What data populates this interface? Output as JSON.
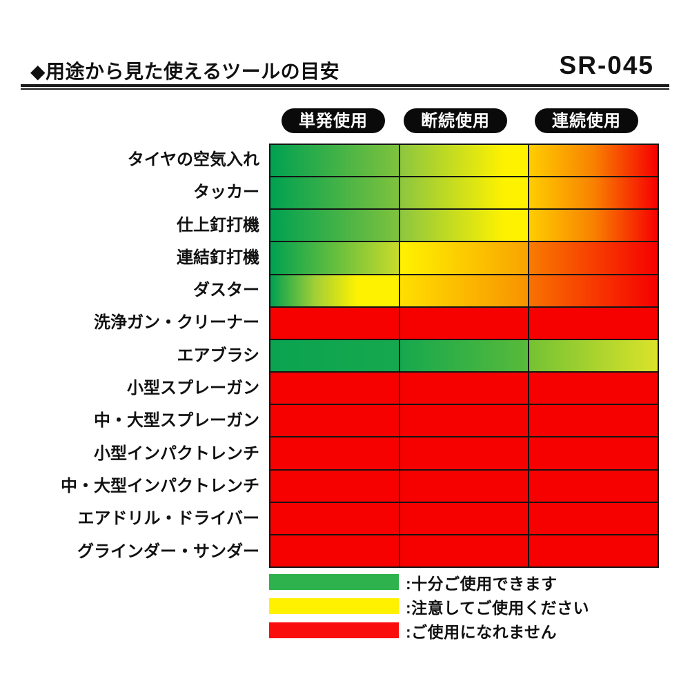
{
  "header": {
    "title": "◆用途から見た使えるツールの目安",
    "code": "SR-045"
  },
  "columns": [
    "単発使用",
    "断続使用",
    "連続使用"
  ],
  "legend": [
    {
      "color": "#2eb24d",
      "label": ":十分ご使用できます"
    },
    {
      "color": "#fff100",
      "label": ":注意してご使用ください"
    },
    {
      "color": "#f90d0d",
      "label": ":ご使用になれません"
    }
  ],
  "palette": {
    "ok_green": "#00a151",
    "caution_yellow": "#fff200",
    "no_red": "#f60000",
    "grid_line": "#141414",
    "pill_black": "#0a0a0a"
  },
  "legend_meaning": {
    "ok": "十分ご使用できます",
    "caution": "注意してご使用ください",
    "no": "ご使用になれません"
  },
  "chart_data": {
    "type": "heatmap",
    "title": "用途から見た使えるツールの目安",
    "columns": [
      "単発使用",
      "断続使用",
      "連続使用"
    ],
    "rows": [
      {
        "label": "タイヤの空気入れ",
        "ratings": [
          "ok→ok",
          "ok→caution",
          "caution→no"
        ],
        "cells": [
          [
            "#00a151",
            "#7fc23d"
          ],
          [
            "#8cc63f",
            "#fff200 82%",
            "#fff200"
          ],
          [
            "#ffcd00",
            "#f88200 50%",
            "#f60000"
          ]
        ]
      },
      {
        "label": "タッカー",
        "ratings": [
          "ok→ok",
          "ok→caution",
          "caution→no"
        ],
        "cells": [
          [
            "#00a151",
            "#7fc23d"
          ],
          [
            "#8cc63f",
            "#fff200 82%",
            "#fff200"
          ],
          [
            "#ffcd00",
            "#f88200 50%",
            "#f60000"
          ]
        ]
      },
      {
        "label": "仕上釘打機",
        "ratings": [
          "ok→ok",
          "ok→caution",
          "caution→no"
        ],
        "cells": [
          [
            "#00a151",
            "#7fc23d"
          ],
          [
            "#8cc63f",
            "#fff200 82%",
            "#fff200"
          ],
          [
            "#ffcd00",
            "#f88200 50%",
            "#f60000"
          ]
        ]
      },
      {
        "label": "連結釘打機",
        "ratings": [
          "ok→caution",
          "caution→no",
          "no"
        ],
        "cells": [
          [
            "#00a151",
            "#c9db2b"
          ],
          [
            "#fff200",
            "#f9a300"
          ],
          [
            "#f87c00",
            "#f60000"
          ]
        ]
      },
      {
        "label": "ダスター",
        "ratings": [
          "ok→caution",
          "caution→no",
          "no"
        ],
        "cells": [
          [
            "#00a151",
            "#a3cf36 35%",
            "#fff200 68%",
            "#fff200"
          ],
          [
            "#ffdf00",
            "#f89300"
          ],
          [
            "#f87300",
            "#f60000"
          ]
        ]
      },
      {
        "label": "洗浄ガン・クリーナー",
        "ratings": [
          "no",
          "no",
          "no"
        ],
        "cells": [
          [
            "#f60000"
          ],
          [
            "#f60000"
          ],
          [
            "#f60000"
          ]
        ]
      },
      {
        "label": "エアブラシ",
        "ratings": [
          "ok",
          "ok",
          "ok→caution"
        ],
        "cells": [
          [
            "#0ba350",
            "#16a84e"
          ],
          [
            "#16a84e",
            "#58ba3a"
          ],
          [
            "#74c233",
            "#dbe32a"
          ]
        ]
      },
      {
        "label": "小型スプレーガン",
        "ratings": [
          "no",
          "no",
          "no"
        ],
        "cells": [
          [
            "#f60000"
          ],
          [
            "#f60000"
          ],
          [
            "#f60000"
          ]
        ]
      },
      {
        "label": "中・大型スプレーガン",
        "ratings": [
          "no",
          "no",
          "no"
        ],
        "cells": [
          [
            "#f60000"
          ],
          [
            "#f60000"
          ],
          [
            "#f60000"
          ]
        ]
      },
      {
        "label": "小型インパクトレンチ",
        "ratings": [
          "no",
          "no",
          "no"
        ],
        "cells": [
          [
            "#f60000"
          ],
          [
            "#f60000"
          ],
          [
            "#f60000"
          ]
        ]
      },
      {
        "label": "中・大型インパクトレンチ",
        "ratings": [
          "no",
          "no",
          "no"
        ],
        "cells": [
          [
            "#f60000"
          ],
          [
            "#f60000"
          ],
          [
            "#f60000"
          ]
        ]
      },
      {
        "label": "エアドリル・ドライバー",
        "ratings": [
          "no",
          "no",
          "no"
        ],
        "cells": [
          [
            "#f60000"
          ],
          [
            "#f60000"
          ],
          [
            "#f60000"
          ]
        ]
      },
      {
        "label": "グラインダー・サンダー",
        "ratings": [
          "no",
          "no",
          "no"
        ],
        "cells": [
          [
            "#f60000"
          ],
          [
            "#f60000"
          ],
          [
            "#f60000"
          ]
        ]
      }
    ],
    "legend": [
      {
        "value": "ok",
        "color": "green",
        "label": "十分ご使用できます"
      },
      {
        "value": "caution",
        "color": "yellow",
        "label": "注意してご使用ください"
      },
      {
        "value": "no",
        "color": "red",
        "label": "ご使用になれません"
      }
    ]
  }
}
